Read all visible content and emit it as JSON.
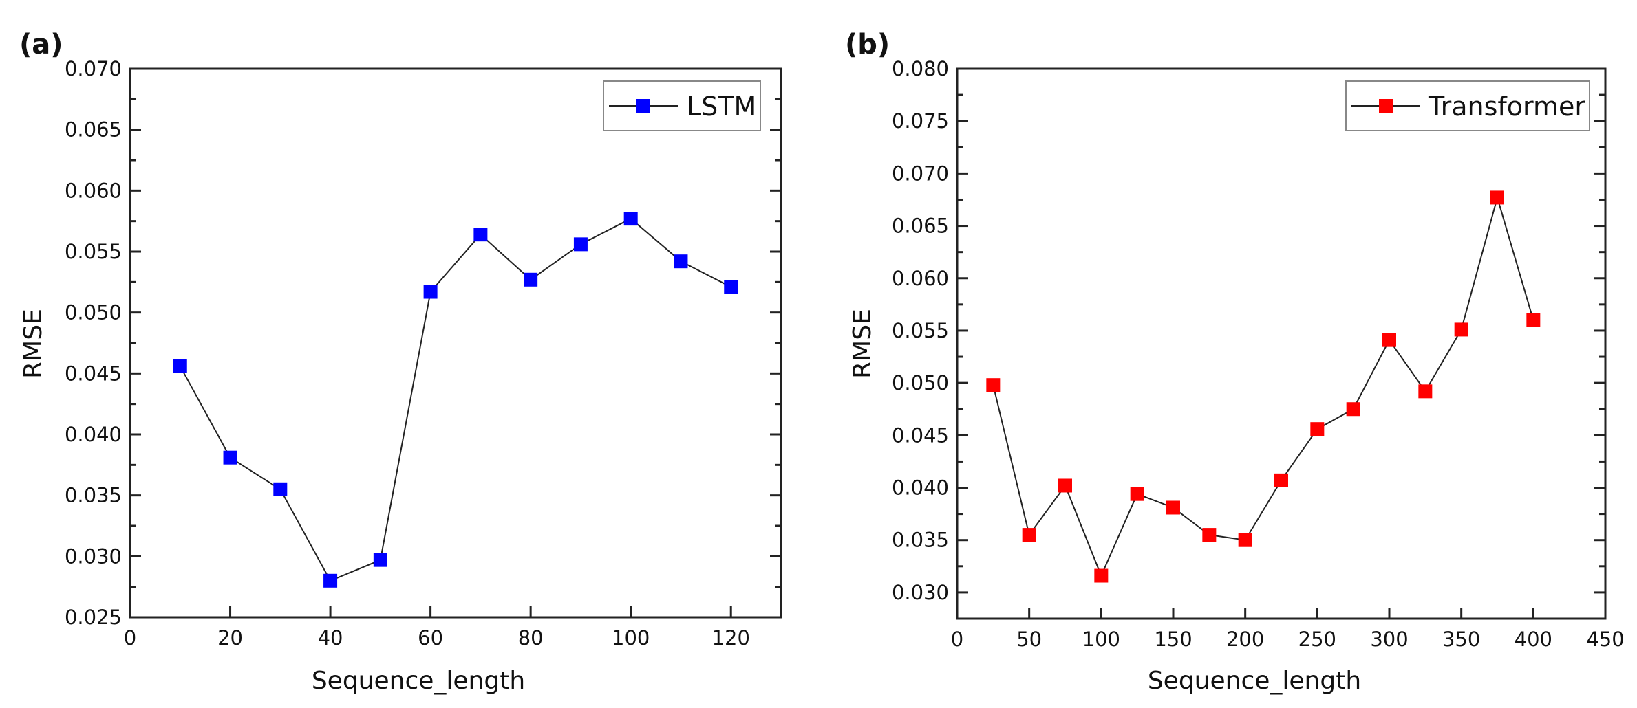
{
  "chart_data": [
    {
      "type": "line",
      "panel_label": "(a)",
      "xlabel": "Sequence_length",
      "ylabel": "RMSE",
      "xlim": [
        0,
        130
      ],
      "ylim": [
        0.025,
        0.07
      ],
      "xticks": [
        0,
        20,
        40,
        60,
        80,
        100,
        120
      ],
      "yticks": [
        "0.025",
        "0.030",
        "0.035",
        "0.040",
        "0.045",
        "0.050",
        "0.055",
        "0.060",
        "0.065",
        "0.070"
      ],
      "grid": false,
      "legend_position": "top-right",
      "series": [
        {
          "name": "LSTM",
          "color": "#0000ff",
          "marker": "square",
          "x": [
            10,
            20,
            30,
            40,
            50,
            60,
            70,
            80,
            90,
            100,
            110,
            120
          ],
          "y": [
            0.0456,
            0.0381,
            0.0355,
            0.028,
            0.0297,
            0.0517,
            0.0564,
            0.0527,
            0.0556,
            0.0577,
            0.0542,
            0.0521
          ]
        }
      ]
    },
    {
      "type": "line",
      "panel_label": "(b)",
      "xlabel": "Sequence_length",
      "ylabel": "RMSE",
      "xlim": [
        0,
        450
      ],
      "ylim": [
        0.0275,
        0.08
      ],
      "xticks": [
        0,
        50,
        100,
        150,
        200,
        250,
        300,
        350,
        400,
        450
      ],
      "yticks": [
        "0.030",
        "0.035",
        "0.040",
        "0.045",
        "0.050",
        "0.055",
        "0.060",
        "0.065",
        "0.070",
        "0.075",
        "0.080"
      ],
      "grid": false,
      "legend_position": "top-right",
      "series": [
        {
          "name": "Transformer",
          "color": "#ff0000",
          "marker": "square",
          "x": [
            25,
            50,
            75,
            100,
            125,
            150,
            175,
            200,
            225,
            250,
            275,
            300,
            325,
            350,
            375,
            400
          ],
          "y": [
            0.0498,
            0.0355,
            0.0402,
            0.0316,
            0.0394,
            0.0381,
            0.0355,
            0.035,
            0.0407,
            0.0456,
            0.0475,
            0.0541,
            0.0492,
            0.0551,
            0.0677,
            0.056
          ]
        }
      ]
    }
  ]
}
